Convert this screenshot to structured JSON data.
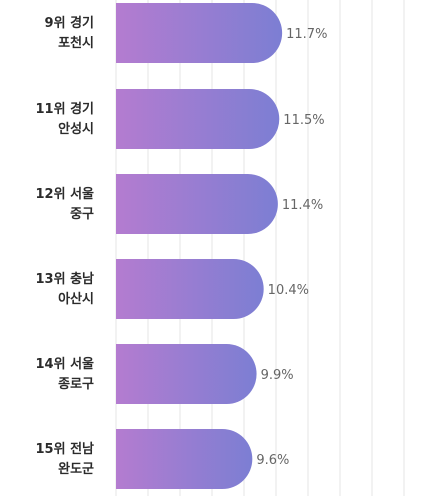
{
  "chart_data": {
    "type": "bar",
    "orientation": "horizontal",
    "categories": [
      [
        "9위 경기",
        "포천시"
      ],
      [
        "11위 경기",
        "안성시"
      ],
      [
        "12위 서울",
        "중구"
      ],
      [
        "13위 충남",
        "아산시"
      ],
      [
        "14위 서울",
        "종로구"
      ],
      [
        "15위 전남",
        "완도군"
      ]
    ],
    "values": [
      11.7,
      11.5,
      11.4,
      10.4,
      9.9,
      9.6
    ],
    "value_labels": [
      "11.7%",
      "11.5%",
      "11.4%",
      "10.4%",
      "9.9%",
      "9.6%"
    ],
    "grid": true,
    "colors": {
      "gradient_start": "#b47cd0",
      "gradient_end": "#7c7ed3"
    }
  }
}
